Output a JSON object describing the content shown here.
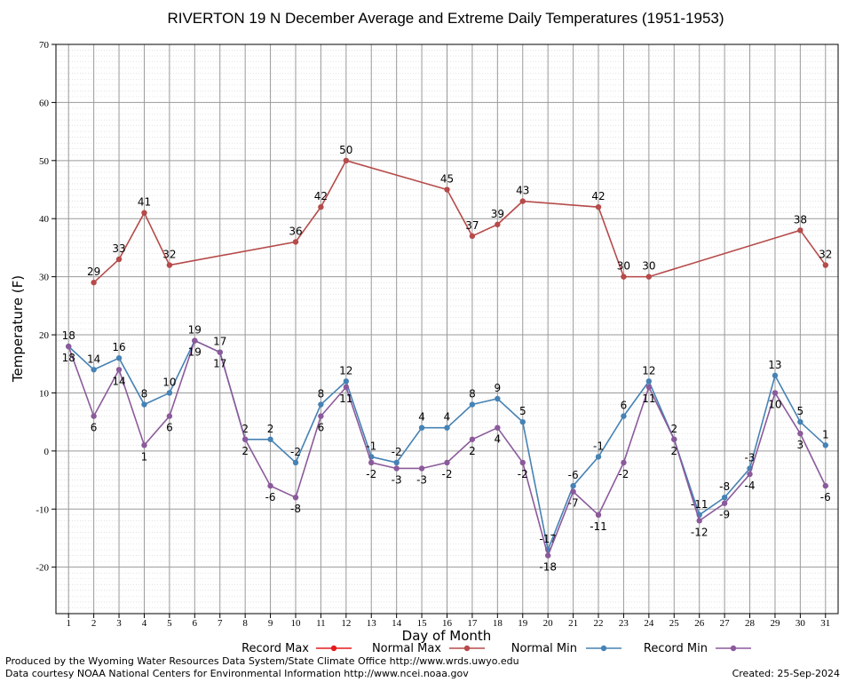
{
  "chart_data": {
    "type": "line",
    "title": "RIVERTON 19 N December Average and Extreme Daily Temperatures (1951-1953)",
    "xlabel": "Day of Month",
    "ylabel": "Temperature (F)",
    "ylim": [
      -28,
      70
    ],
    "yticks": [
      70,
      60,
      50,
      40,
      30,
      20,
      10,
      0,
      -10,
      -20
    ],
    "xlim": [
      0.5,
      31.5
    ],
    "xticks": [
      1,
      2,
      3,
      4,
      5,
      6,
      7,
      8,
      9,
      10,
      11,
      12,
      13,
      14,
      15,
      16,
      17,
      18,
      19,
      20,
      21,
      22,
      23,
      24,
      25,
      26,
      27,
      28,
      29,
      30,
      31
    ],
    "grid": true,
    "legend_position": "bottom",
    "series": [
      {
        "name": "Record Max",
        "color": "#e41a1c",
        "label_position": "none",
        "x": [],
        "values": []
      },
      {
        "name": "Normal Max",
        "color": "#b64a4a",
        "label_position": "above",
        "x": [
          2,
          3,
          4,
          5,
          10,
          11,
          12,
          16,
          17,
          18,
          19,
          22,
          23,
          24,
          30,
          31
        ],
        "values": [
          29,
          33,
          41,
          32,
          36,
          42,
          50,
          45,
          37,
          39,
          43,
          42,
          30,
          30,
          38,
          32
        ]
      },
      {
        "name": "Normal Min",
        "color": "#4682b4",
        "label_position": "above",
        "x": [
          1,
          2,
          3,
          4,
          5,
          6,
          7,
          8,
          9,
          10,
          11,
          12,
          13,
          14,
          15,
          16,
          17,
          18,
          19,
          20,
          21,
          22,
          23,
          24,
          25,
          26,
          27,
          28,
          29,
          30,
          31
        ],
        "values": [
          18,
          14,
          16,
          8,
          10,
          19,
          17,
          2,
          2,
          -2,
          8,
          12,
          -1,
          -2,
          4,
          4,
          8,
          9,
          5,
          -17,
          -6,
          -1,
          6,
          12,
          2,
          -11,
          -8,
          -3,
          13,
          5,
          1
        ]
      },
      {
        "name": "Record Min",
        "color": "#8b5a9b",
        "label_position": "below",
        "x": [
          1,
          2,
          3,
          4,
          5,
          6,
          7,
          8,
          9,
          10,
          11,
          12,
          13,
          14,
          15,
          16,
          17,
          18,
          19,
          20,
          21,
          22,
          23,
          24,
          25,
          26,
          27,
          28,
          29,
          30,
          31
        ],
        "values": [
          18,
          6,
          14,
          1,
          6,
          19,
          17,
          2,
          -6,
          -8,
          6,
          11,
          -2,
          -3,
          -3,
          -2,
          2,
          4,
          -2,
          -18,
          -7,
          -11,
          -2,
          11,
          2,
          -12,
          -9,
          -4,
          10,
          3,
          -6
        ]
      }
    ]
  },
  "footer": {
    "produced_by": "Produced by the Wyoming Water Resources Data System/State Climate Office http://www.wrds.uwyo.edu",
    "courtesy": "Data courtesy NOAA National Centers for Environmental Information http://www.ncei.noaa.gov",
    "created": "Created:  25-Sep-2024"
  }
}
